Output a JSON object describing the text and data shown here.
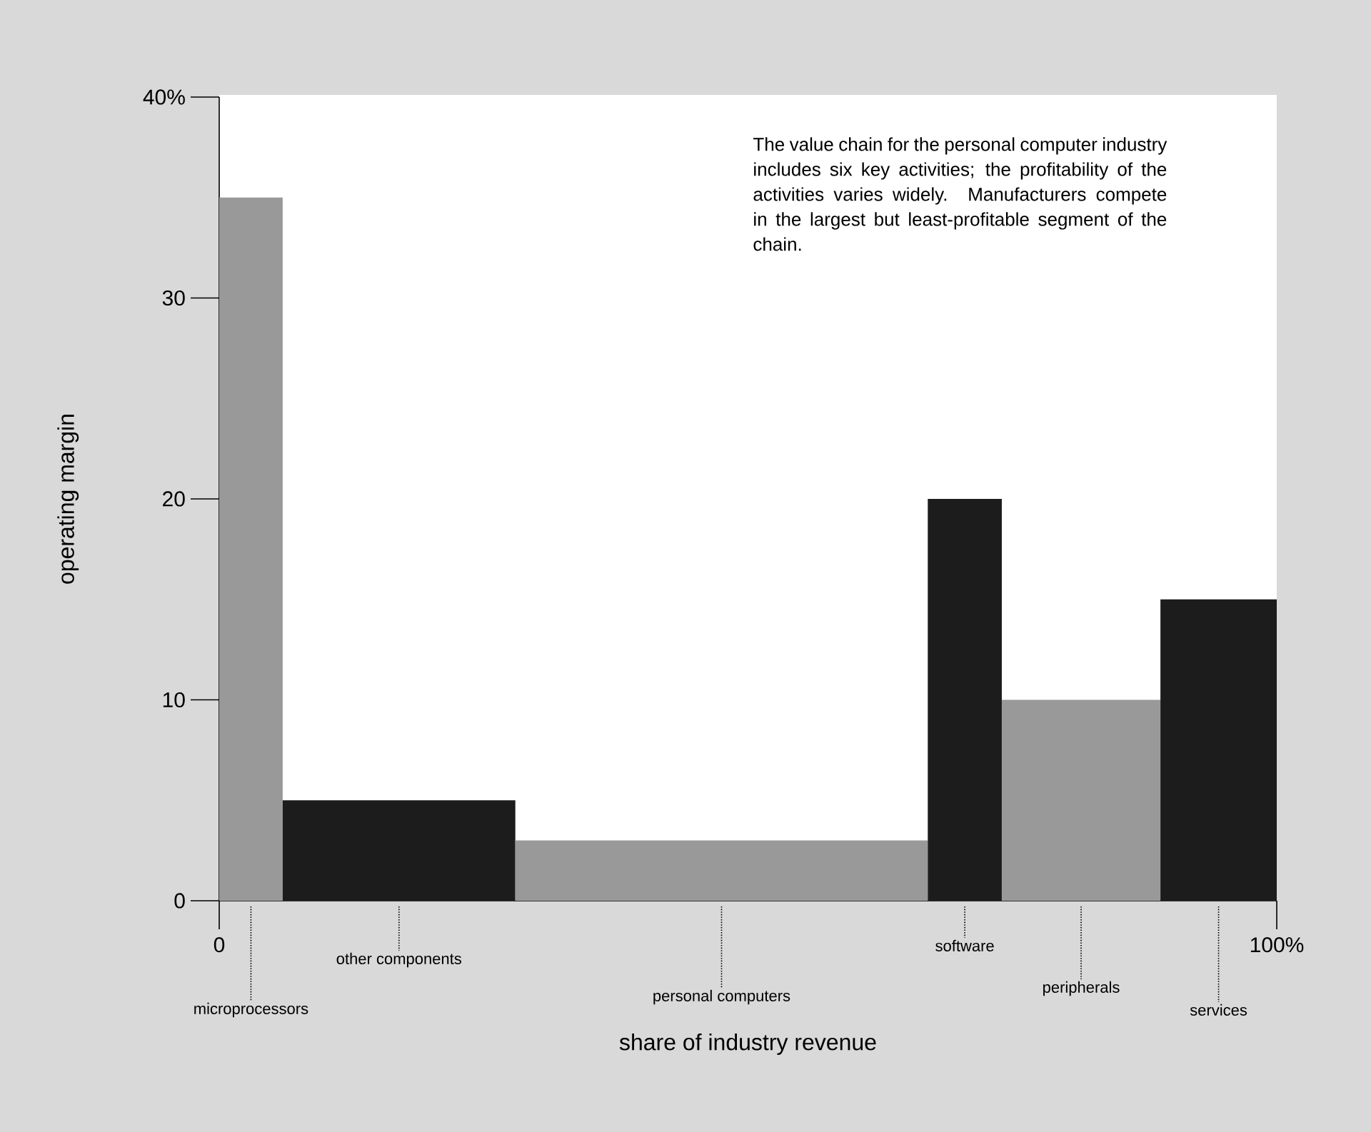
{
  "chart_data": {
    "type": "histogram",
    "xlabel": "share of industry revenue",
    "ylabel": "operating margin",
    "bins": [
      0,
      6,
      28,
      67,
      74,
      89,
      100
    ],
    "values": [
      35,
      5,
      3,
      20,
      10,
      15
    ],
    "colors": [
      "#999999",
      "#1c1c1c",
      "#999999",
      "#1c1c1c",
      "#999999",
      "#1c1c1c"
    ],
    "xlim": [
      0,
      100
    ],
    "xticks": [
      0,
      {
        "value": 100,
        "label": "100%"
      }
    ],
    "ylim": [
      0,
      40
    ],
    "yticks": [
      0,
      10,
      20,
      30,
      {
        "value": 40,
        "label": "40%"
      }
    ],
    "grid": false,
    "annotations": [
      {
        "text": "microprocessors",
        "x": 3,
        "y": 0
      },
      {
        "text": "other components",
        "x": 17,
        "y": 0
      },
      {
        "text": "personal computers",
        "x": 47.5,
        "y": 0
      },
      {
        "text": "software",
        "x": 70.5,
        "y": 0
      },
      {
        "text": "peripherals",
        "x": 81.5,
        "y": 0
      },
      {
        "text": "services",
        "x": 94.5,
        "y": 0
      },
      "The value chain for the personal computer industry includes six key activities; the profitability of the activities varies widely. Manufacturers compete in the largest but least-profitable segment of the chain."
    ]
  }
}
